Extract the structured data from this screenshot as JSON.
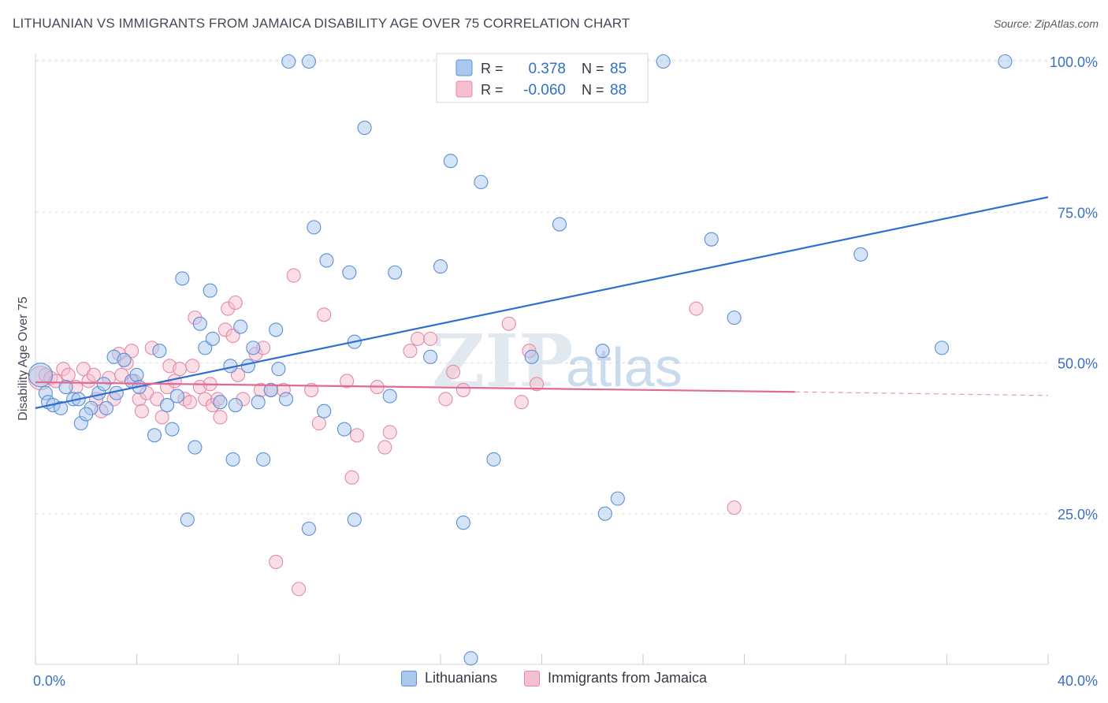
{
  "title": "LITHUANIAN VS IMMIGRANTS FROM JAMAICA DISABILITY AGE OVER 75 CORRELATION CHART",
  "source": "Source: ZipAtlas.com",
  "watermark": {
    "zip": "ZIP",
    "atlas": "atlas"
  },
  "legend_box": {
    "rows": [
      {
        "r_label": "R =",
        "r_value": "0.378",
        "n_label": "N =",
        "n_value": "85"
      },
      {
        "r_label": "R =",
        "r_value": "-0.060",
        "n_label": "N =",
        "n_value": "88"
      }
    ]
  },
  "chart_data": {
    "type": "scatter",
    "title": "LITHUANIAN VS IMMIGRANTS FROM JAMAICA DISABILITY AGE OVER 75 CORRELATION CHART",
    "xlabel": "",
    "ylabel": "Disability Age Over 75",
    "xlim": [
      0,
      40
    ],
    "ylim": [
      0,
      102
    ],
    "x_tick_labels": [
      "0.0%",
      "40.0%"
    ],
    "y_tick_labels": [
      "25.0%",
      "50.0%",
      "75.0%",
      "100.0%"
    ],
    "y_tick_values": [
      25,
      50,
      75,
      100
    ],
    "grid": true,
    "legend_position": "bottom",
    "colors": {
      "blue_fill": "#aac8ee",
      "blue_stroke": "#5b8fd6",
      "blue_line": "#2f6fd0",
      "pink_fill": "#f6bfd0",
      "pink_stroke": "#e48aa8",
      "pink_line": "#e06a93",
      "axis_label": "#3a6fc4"
    },
    "series": [
      {
        "name": "Lithuanians",
        "r": 0.378,
        "n": 85,
        "trend": {
          "x": [
            0,
            40
          ],
          "y": [
            42.5,
            77.5
          ]
        },
        "points": [
          [
            0.2,
            48
          ],
          [
            0.4,
            45
          ],
          [
            0.5,
            43.5
          ],
          [
            0.7,
            43
          ],
          [
            1.0,
            42.5
          ],
          [
            1.2,
            46
          ],
          [
            1.5,
            44
          ],
          [
            1.7,
            44
          ],
          [
            2.2,
            42.5
          ],
          [
            1.8,
            40
          ],
          [
            2.0,
            41.5
          ],
          [
            2.5,
            45
          ],
          [
            2.7,
            46.5
          ],
          [
            2.8,
            42.5
          ],
          [
            3.1,
            51
          ],
          [
            3.2,
            45
          ],
          [
            3.5,
            50.5
          ],
          [
            3.8,
            47
          ],
          [
            4.0,
            48
          ],
          [
            4.1,
            46
          ],
          [
            4.7,
            38
          ],
          [
            4.9,
            52
          ],
          [
            5.2,
            43
          ],
          [
            5.4,
            39
          ],
          [
            5.6,
            44.5
          ],
          [
            5.8,
            64
          ],
          [
            6.0,
            24
          ],
          [
            6.3,
            36
          ],
          [
            6.5,
            56.5
          ],
          [
            6.7,
            52.5
          ],
          [
            6.9,
            62
          ],
          [
            7.0,
            54
          ],
          [
            7.3,
            43.5
          ],
          [
            7.7,
            49.5
          ],
          [
            7.8,
            34
          ],
          [
            7.9,
            43
          ],
          [
            8.1,
            56
          ],
          [
            8.4,
            49.5
          ],
          [
            8.6,
            52.5
          ],
          [
            8.8,
            43.5
          ],
          [
            9.0,
            34
          ],
          [
            9.3,
            45.5
          ],
          [
            9.5,
            55.5
          ],
          [
            9.6,
            49
          ],
          [
            9.9,
            44
          ],
          [
            10.0,
            100
          ],
          [
            10.8,
            100
          ],
          [
            10.8,
            22.5
          ],
          [
            11.0,
            72.5
          ],
          [
            11.4,
            42
          ],
          [
            11.5,
            67
          ],
          [
            12.2,
            39
          ],
          [
            12.4,
            65
          ],
          [
            12.6,
            53.5
          ],
          [
            12.6,
            24
          ],
          [
            13.0,
            89
          ],
          [
            14.0,
            44.5
          ],
          [
            14.2,
            65
          ],
          [
            15.6,
            51
          ],
          [
            16.0,
            66
          ],
          [
            16.4,
            83.5
          ],
          [
            16.9,
            23.5
          ],
          [
            17.2,
            1
          ],
          [
            17.6,
            80
          ],
          [
            18.1,
            34
          ],
          [
            19.6,
            51
          ],
          [
            20.7,
            73
          ],
          [
            21.4,
            100
          ],
          [
            22.4,
            52
          ],
          [
            22.5,
            25
          ],
          [
            23.0,
            27.5
          ],
          [
            24.8,
            100
          ],
          [
            26.7,
            70.5
          ],
          [
            27.6,
            57.5
          ],
          [
            32.6,
            68
          ],
          [
            35.8,
            52.5
          ],
          [
            38.3,
            100
          ]
        ]
      },
      {
        "name": "Immigrants from Jamaica",
        "r": -0.06,
        "n": 88,
        "trend": {
          "x": [
            0,
            30
          ],
          "y": [
            46.8,
            45.2
          ]
        },
        "trend_dashed": {
          "x": [
            30,
            40
          ],
          "y": [
            45.2,
            44.6
          ]
        },
        "points": [
          [
            0.2,
            47.5
          ],
          [
            0.4,
            48
          ],
          [
            0.6,
            47.5
          ],
          [
            0.8,
            47
          ],
          [
            1.1,
            49
          ],
          [
            1.3,
            48
          ],
          [
            1.6,
            46
          ],
          [
            1.9,
            49
          ],
          [
            2.1,
            47
          ],
          [
            2.3,
            48
          ],
          [
            2.4,
            44
          ],
          [
            2.6,
            42
          ],
          [
            2.9,
            47.5
          ],
          [
            3.1,
            44
          ],
          [
            3.3,
            51.5
          ],
          [
            3.4,
            48
          ],
          [
            3.6,
            50
          ],
          [
            3.8,
            52
          ],
          [
            3.9,
            47
          ],
          [
            4.1,
            44
          ],
          [
            4.2,
            42
          ],
          [
            4.4,
            45
          ],
          [
            4.6,
            52.5
          ],
          [
            4.8,
            44
          ],
          [
            5.0,
            41
          ],
          [
            5.2,
            46
          ],
          [
            5.3,
            49.5
          ],
          [
            5.5,
            47
          ],
          [
            5.7,
            49
          ],
          [
            5.9,
            44
          ],
          [
            6.1,
            43.5
          ],
          [
            6.2,
            49.5
          ],
          [
            6.3,
            57.5
          ],
          [
            6.5,
            46
          ],
          [
            6.7,
            44
          ],
          [
            6.9,
            46.5
          ],
          [
            7.0,
            43
          ],
          [
            7.2,
            44
          ],
          [
            7.3,
            41
          ],
          [
            7.5,
            55.5
          ],
          [
            7.6,
            59
          ],
          [
            7.8,
            54.5
          ],
          [
            7.9,
            60
          ],
          [
            8.0,
            48
          ],
          [
            8.2,
            44
          ],
          [
            8.7,
            51.5
          ],
          [
            8.9,
            45.5
          ],
          [
            9.0,
            52.5
          ],
          [
            9.3,
            45.5
          ],
          [
            9.5,
            17
          ],
          [
            9.8,
            45.5
          ],
          [
            10.2,
            64.5
          ],
          [
            10.4,
            12.5
          ],
          [
            10.9,
            45.5
          ],
          [
            11.2,
            40
          ],
          [
            11.4,
            58
          ],
          [
            12.3,
            47
          ],
          [
            12.5,
            31
          ],
          [
            12.7,
            38
          ],
          [
            13.5,
            46
          ],
          [
            13.8,
            36
          ],
          [
            14.0,
            38.5
          ],
          [
            14.8,
            52
          ],
          [
            15.1,
            54
          ],
          [
            15.6,
            54
          ],
          [
            16.2,
            44
          ],
          [
            16.5,
            48.5
          ],
          [
            16.9,
            45.5
          ],
          [
            18.7,
            56.5
          ],
          [
            19.2,
            43.5
          ],
          [
            19.5,
            52
          ],
          [
            19.8,
            46.5
          ],
          [
            26.1,
            59
          ],
          [
            27.6,
            26
          ]
        ]
      }
    ]
  }
}
